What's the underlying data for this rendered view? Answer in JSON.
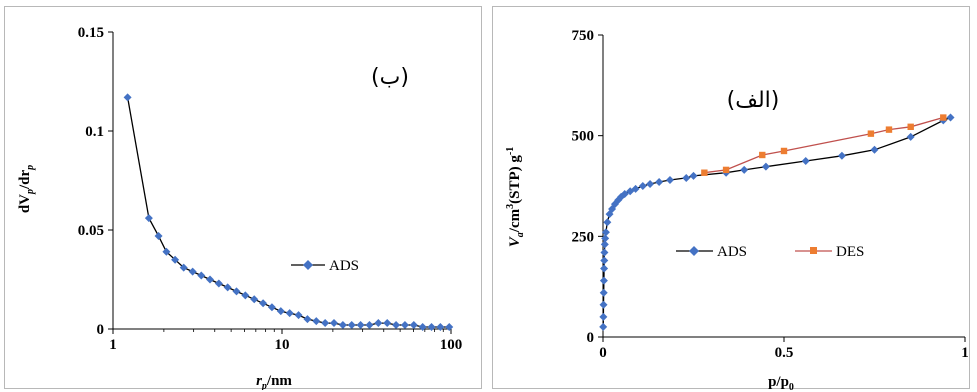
{
  "chart_data": [
    {
      "type": "line",
      "panel_label": "(ب)",
      "xlabel_main": "r",
      "xlabel_sub": "p",
      "xlabel_suffix": "/nm",
      "ylabel_main": "dV",
      "ylabel_sub1": "p",
      "ylabel_mid": "/dr",
      "ylabel_sub2": "p",
      "x_scale": "log",
      "xlim": [
        1,
        100
      ],
      "ylim": [
        0,
        0.15
      ],
      "x_ticks": [
        1,
        10,
        100
      ],
      "x_tick_labels": [
        "1",
        "10",
        "100"
      ],
      "y_ticks": [
        0,
        0.05,
        0.1,
        0.15
      ],
      "y_tick_labels": [
        "0",
        "0.05",
        "0.1",
        "0.15"
      ],
      "grid": false,
      "legend_position": "center-right",
      "series": [
        {
          "name": "ADS",
          "color": "#4472c4",
          "line_color": "#000000",
          "marker": "diamond",
          "x": [
            1.22,
            1.63,
            1.86,
            2.07,
            2.33,
            2.62,
            2.96,
            3.33,
            3.75,
            4.23,
            4.77,
            5.38,
            6.07,
            6.85,
            7.73,
            8.72,
            9.84,
            11.1,
            12.53,
            14.14,
            15.95,
            18.0,
            20.31,
            22.92,
            25.86,
            29.18,
            32.93,
            37.16,
            41.93,
            47.31,
            53.39,
            60.24,
            67.97,
            76.7,
            86.54,
            97.65
          ],
          "y": [
            0.117,
            0.056,
            0.047,
            0.039,
            0.035,
            0.031,
            0.029,
            0.027,
            0.025,
            0.023,
            0.021,
            0.019,
            0.017,
            0.015,
            0.013,
            0.011,
            0.009,
            0.008,
            0.007,
            0.005,
            0.004,
            0.003,
            0.003,
            0.002,
            0.002,
            0.002,
            0.002,
            0.003,
            0.003,
            0.002,
            0.002,
            0.002,
            0.001,
            0.001,
            0.001,
            0.001
          ]
        }
      ]
    },
    {
      "type": "line",
      "panel_label": "(الف)",
      "xlabel_main": "p/p",
      "xlabel_sub": "0",
      "ylabel_main": "V",
      "ylabel_sub": "a",
      "ylabel_rest": "/cm",
      "ylabel_sup": "3",
      "ylabel_rest2": "(STP) g",
      "ylabel_sup2": "-1",
      "xlim": [
        0,
        1
      ],
      "ylim": [
        0,
        750
      ],
      "x_ticks": [
        0,
        0.5,
        1
      ],
      "x_tick_labels": [
        "0",
        "0.5",
        "1"
      ],
      "y_ticks": [
        0,
        250,
        500,
        750
      ],
      "y_tick_labels": [
        "0",
        "250",
        "500",
        "750"
      ],
      "grid": false,
      "legend_position": "center",
      "series": [
        {
          "name": "ADS",
          "color": "#4472c4",
          "line_color": "#000000",
          "marker": "diamond",
          "x": [
            0.0005,
            0.001,
            0.0015,
            0.002,
            0.0025,
            0.003,
            0.0035,
            0.004,
            0.005,
            0.006,
            0.008,
            0.012,
            0.018,
            0.025,
            0.033,
            0.042,
            0.05,
            0.06,
            0.075,
            0.09,
            0.11,
            0.13,
            0.155,
            0.185,
            0.23,
            0.25,
            0.34,
            0.39,
            0.45,
            0.56,
            0.66,
            0.75,
            0.85,
            0.94,
            0.96
          ],
          "y": [
            25,
            50,
            80,
            110,
            140,
            170,
            190,
            210,
            230,
            245,
            260,
            285,
            305,
            318,
            330,
            340,
            348,
            355,
            362,
            368,
            375,
            380,
            385,
            390,
            395,
            400,
            408,
            415,
            423,
            437,
            450,
            465,
            497,
            538,
            545
          ]
        },
        {
          "name": "DES",
          "color": "#ed7d31",
          "line_color": "#c0504d",
          "marker": "square",
          "x": [
            0.28,
            0.34,
            0.44,
            0.5,
            0.74,
            0.79,
            0.85,
            0.94
          ],
          "y": [
            408,
            415,
            452,
            462,
            505,
            515,
            522,
            545
          ]
        }
      ]
    }
  ]
}
